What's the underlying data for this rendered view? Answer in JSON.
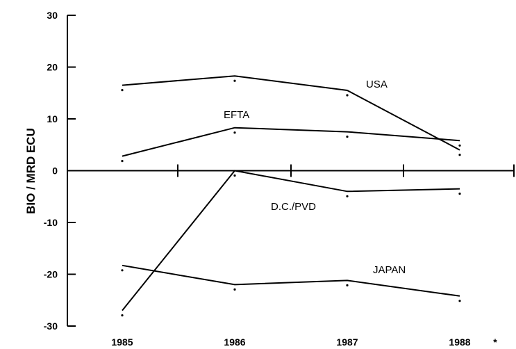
{
  "chart_data": {
    "type": "line",
    "ylabel": "BIO / MRD ECU",
    "xlabel": "",
    "categories": [
      "1985",
      "1986",
      "1987",
      "1988"
    ],
    "x_footnote": "*",
    "ylim": [
      -30,
      30
    ],
    "yticks": [
      30,
      20,
      10,
      0,
      -10,
      -20,
      -30
    ],
    "yticks_text": [
      "30",
      "20",
      "10",
      "0",
      "-10",
      "-20",
      "-30"
    ],
    "grid": false,
    "legend": "none",
    "series": [
      {
        "name": "USA",
        "values": [
          16.5,
          18.3,
          15.5,
          4.0
        ]
      },
      {
        "name": "EFTA",
        "values": [
          2.8,
          8.3,
          7.5,
          5.8
        ]
      },
      {
        "name": "D.C./PVD",
        "values": [
          -27.0,
          0.0,
          -4.0,
          -3.5
        ]
      },
      {
        "name": "JAPAN",
        "values": [
          -18.3,
          -22.0,
          -21.2,
          -24.2
        ]
      }
    ],
    "colors": {
      "line": "#000000",
      "background": "#ffffff"
    }
  }
}
